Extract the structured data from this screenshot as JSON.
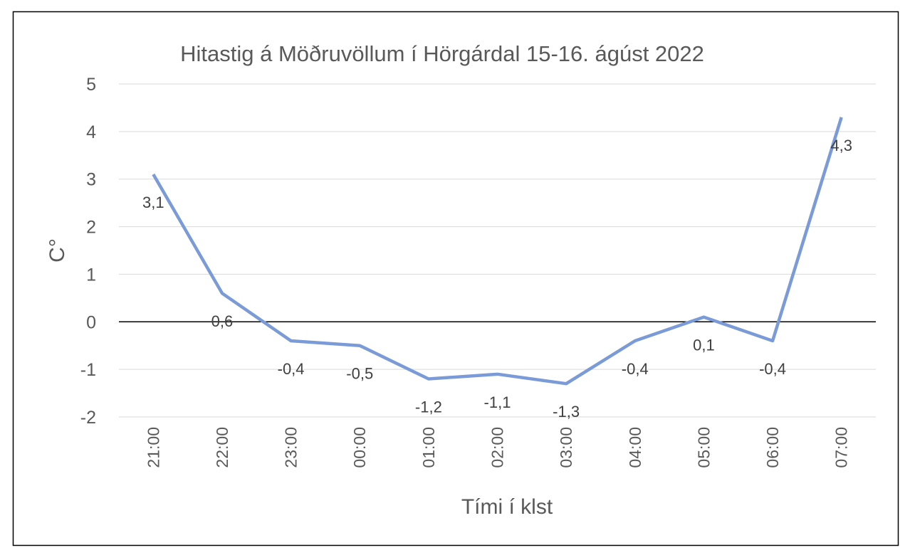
{
  "chart_data": {
    "type": "line",
    "title": "Hitastig á Möðruvöllum í Hörgárdal 15-16. ágúst 2022",
    "xlabel": "Tími í klst",
    "ylabel": "C°",
    "categories": [
      "21:00",
      "22:00",
      "23:00",
      "00:00",
      "01:00",
      "02:00",
      "03:00",
      "04:00",
      "05:00",
      "06:00",
      "07:00"
    ],
    "series": [
      {
        "name": "Hitastig",
        "values": [
          3.1,
          0.6,
          -0.4,
          -0.5,
          -1.2,
          -1.1,
          -1.3,
          -0.4,
          0.1,
          -0.4,
          4.3
        ],
        "labels": [
          "3,1",
          "0,6",
          "-0,4",
          "-0,5",
          "-1,2",
          "-1,1",
          "-1,3",
          "-0,4",
          "0,1",
          "-0,4",
          "4,3"
        ]
      }
    ],
    "ylim": [
      -2,
      5
    ],
    "yticks": [
      5,
      4,
      3,
      2,
      1,
      0,
      -1,
      -2
    ],
    "ytick_labels": [
      "5",
      "4",
      "3",
      "2",
      "1",
      "0",
      "-1",
      "-2"
    ],
    "grid": true,
    "legend": "none",
    "colors": {
      "line": "#7A9BD7",
      "grid": "#D9D9D9",
      "zero_line": "#000000",
      "text": "#595959",
      "label": "#404040"
    }
  }
}
